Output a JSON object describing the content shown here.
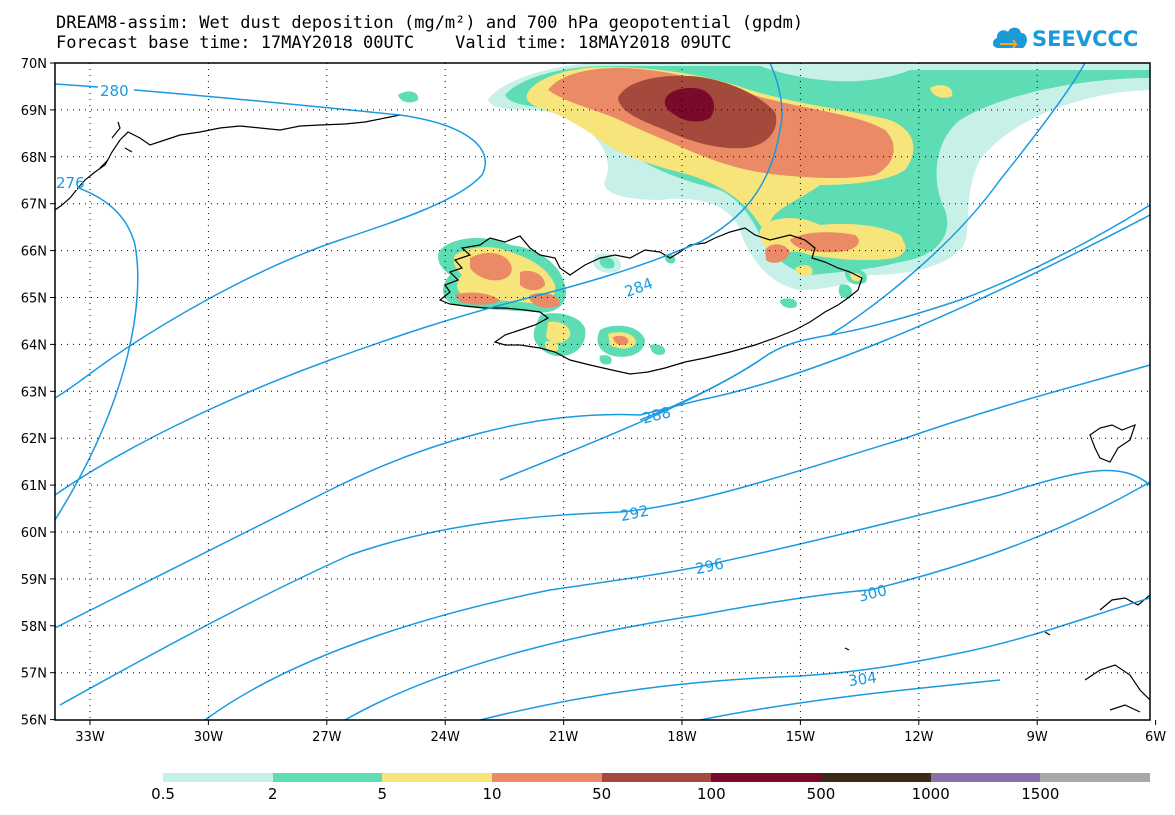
{
  "header": {
    "title_line1": "DREAM8-assim: Wet dust deposition (mg/m²) and 700 hPa geopotential (gpdm)",
    "title_line2": "Forecast base time: 17MAY2018 00UTC    Valid time: 18MAY2018 09UTC"
  },
  "logo": {
    "text": "SEEVCCC",
    "color": "#1a9ad6"
  },
  "map": {
    "lat_labels": [
      "70N",
      "69N",
      "68N",
      "67N",
      "66N",
      "65N",
      "64N",
      "63N",
      "62N",
      "61N",
      "60N",
      "59N",
      "58N",
      "57N",
      "56N"
    ],
    "lon_labels": [
      "33W",
      "30W",
      "27W",
      "24W",
      "21W",
      "18W",
      "15W",
      "12W",
      "9W",
      "6W"
    ],
    "contour_color": "#1a9ae0",
    "contour_labels": {
      "c280": "280",
      "c276": "276",
      "c284": "284",
      "c288": "288",
      "c292": "292",
      "c296": "296",
      "c300": "300",
      "c304": "304"
    }
  },
  "legend": {
    "colors": [
      "#c7f0e8",
      "#5edcb4",
      "#f7e47a",
      "#ea8a66",
      "#a34a3c",
      "#7a0a2a",
      "#3c2a14",
      "#8c6ea8",
      "#a8a8a8"
    ],
    "labels": [
      "0.5",
      "2",
      "5",
      "10",
      "50",
      "100",
      "500",
      "1000",
      "1500"
    ]
  }
}
